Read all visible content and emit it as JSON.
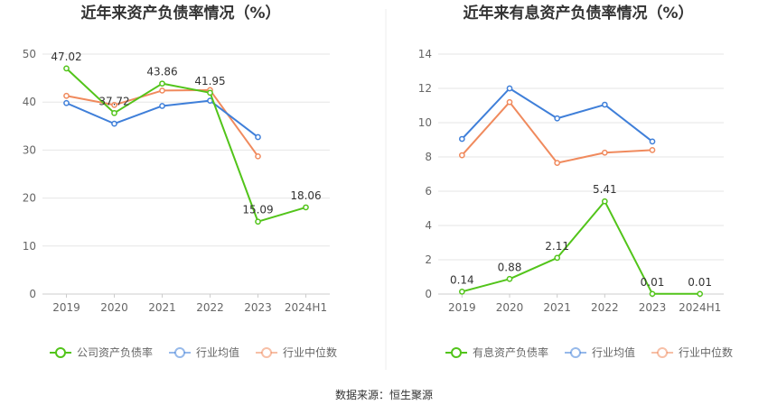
{
  "source": "数据来源：恒生聚源",
  "chart_data": [
    {
      "type": "line",
      "title": "近年来资产负债率情况（%）",
      "categories": [
        "2019",
        "2020",
        "2021",
        "2022",
        "2023",
        "2024H1"
      ],
      "ylim": [
        0,
        50
      ],
      "yticks": [
        0,
        10,
        20,
        30,
        40,
        50
      ],
      "legend": "bottom",
      "grid": true,
      "series": [
        {
          "name": "公司资产负债率",
          "color": "#52c41a",
          "values": [
            47.02,
            37.72,
            43.86,
            41.95,
            15.09,
            18.06
          ],
          "labels": [
            "47.02",
            "37.72",
            "43.86",
            "41.95",
            "15.09",
            "18.06"
          ]
        },
        {
          "name": "行业均值",
          "color": "#3f7fd9",
          "values": [
            39.8,
            35.5,
            39.2,
            40.3,
            32.7,
            null
          ]
        },
        {
          "name": "行业中位数",
          "color": "#f08a5d",
          "values": [
            41.3,
            39.4,
            42.4,
            42.5,
            28.7,
            null
          ]
        }
      ]
    },
    {
      "type": "line",
      "title": "近年来有息资产负债率情况（%）",
      "categories": [
        "2019",
        "2020",
        "2021",
        "2022",
        "2023",
        "2024H1"
      ],
      "ylim": [
        0,
        14
      ],
      "yticks": [
        0,
        2,
        4,
        6,
        8,
        10,
        12,
        14
      ],
      "legend": "bottom",
      "grid": true,
      "series": [
        {
          "name": "有息资产负债率",
          "color": "#52c41a",
          "values": [
            0.14,
            0.88,
            2.11,
            5.41,
            0.01,
            0.01
          ],
          "labels": [
            "0.14",
            "0.88",
            "2.11",
            "5.41",
            "0.01",
            "0.01"
          ]
        },
        {
          "name": "行业均值",
          "color": "#3f7fd9",
          "values": [
            9.05,
            12.0,
            10.25,
            11.05,
            8.9,
            null
          ]
        },
        {
          "name": "行业中位数",
          "color": "#f08a5d",
          "values": [
            8.1,
            11.2,
            7.65,
            8.25,
            8.4,
            null
          ]
        }
      ]
    }
  ]
}
